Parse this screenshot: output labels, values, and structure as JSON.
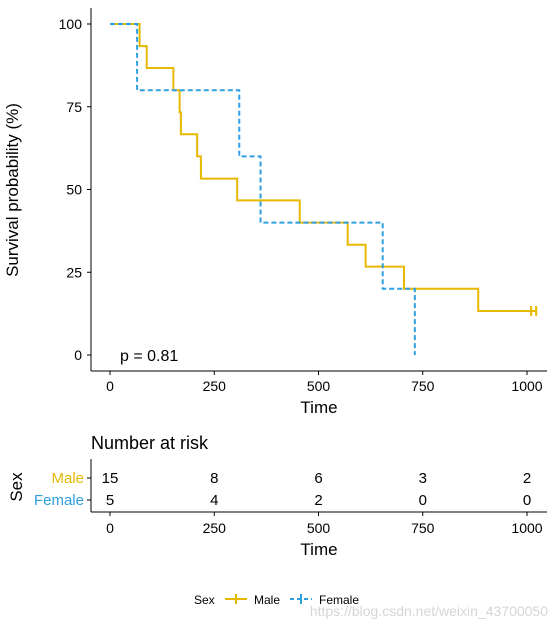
{
  "chart_data": {
    "type": "line",
    "subtype": "kaplan-meier",
    "ylabel": "Survival probability (%)",
    "xlabel": "Time",
    "xlim": [
      -45,
      1045
    ],
    "ylim": [
      -5,
      105
    ],
    "x_ticks": [
      0,
      250,
      500,
      750,
      1000
    ],
    "y_ticks": [
      0,
      25,
      50,
      75,
      100
    ],
    "x_tick_labels": [
      "0",
      "250",
      "500",
      "750",
      "1000"
    ],
    "y_tick_labels": [
      "0",
      "25",
      "50",
      "75",
      "100"
    ],
    "grid": false,
    "annotation": "p = 0.81",
    "series": [
      {
        "name": "Male",
        "color": "#E7B800",
        "linestyle": "solid",
        "steps": [
          [
            0,
            100
          ],
          [
            71,
            93.3
          ],
          [
            88,
            86.7
          ],
          [
            152,
            80
          ],
          [
            167,
            73.3
          ],
          [
            170,
            66.7
          ],
          [
            209,
            60
          ],
          [
            218,
            53.3
          ],
          [
            305,
            46.7
          ],
          [
            455,
            40
          ],
          [
            570,
            33.3
          ],
          [
            613,
            26.7
          ],
          [
            705,
            20
          ],
          [
            883,
            13.3
          ],
          [
            1022,
            13.3
          ]
        ],
        "censor_x": [
          1010,
          1022
        ]
      },
      {
        "name": "Female",
        "color": "#2E9FDF",
        "linestyle": "dashed",
        "steps": [
          [
            0,
            100
          ],
          [
            65,
            80
          ],
          [
            310,
            60
          ],
          [
            361,
            40
          ],
          [
            654,
            20
          ],
          [
            731,
            0
          ]
        ],
        "censor_x": []
      }
    ]
  },
  "risk_table": {
    "title": "Number at risk",
    "axis_label": "Sex",
    "xlabel": "Time",
    "x_tick_labels": [
      "0",
      "250",
      "500",
      "750",
      "1000"
    ],
    "times": [
      0,
      250,
      500,
      750,
      1000
    ],
    "rows": [
      {
        "label": "Male",
        "color": "#E7B800",
        "counts": [
          "15",
          "8",
          "6",
          "3",
          "2"
        ]
      },
      {
        "label": "Female",
        "color": "#2E9FDF",
        "counts": [
          "5",
          "4",
          "2",
          "0",
          "0"
        ]
      }
    ]
  },
  "legend": {
    "title": "Sex",
    "entries": [
      {
        "label": "Male",
        "color": "#E7B800",
        "linestyle": "solid"
      },
      {
        "label": "Female",
        "color": "#2E9FDF",
        "linestyle": "dashed"
      }
    ],
    "position": "bottom"
  },
  "watermark": "https://blog.csdn.net/weixin_43700050"
}
